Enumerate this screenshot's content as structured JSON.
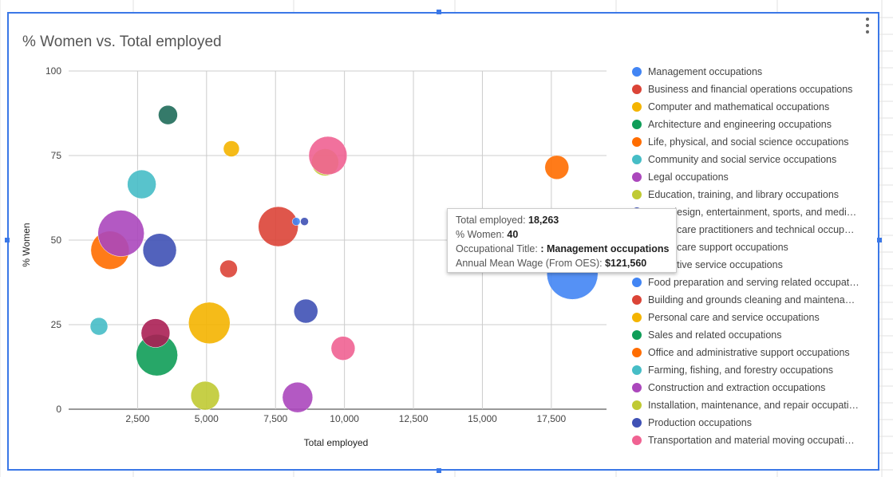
{
  "chart_data": {
    "type": "scatter",
    "title": "% Women vs. Total employed",
    "xlabel": "Total employed",
    "ylabel": "% Women",
    "xlim": [
      0,
      19500
    ],
    "ylim": [
      0,
      100
    ],
    "x_ticks": [
      2500,
      5000,
      7500,
      10000,
      12500,
      15000,
      17500
    ],
    "x_tick_labels": [
      "2,500",
      "5,000",
      "7,500",
      "10,000",
      "12,500",
      "15,000",
      "17,500"
    ],
    "y_ticks": [
      0,
      25,
      50,
      75,
      100
    ],
    "y_tick_labels": [
      "0",
      "25",
      "50",
      "75",
      "100"
    ],
    "grid": true,
    "legend_position": "right",
    "series": [
      {
        "name": "Management occupations",
        "color": "#4285f4",
        "x": 18263,
        "y": 40,
        "size": 32
      },
      {
        "name": "Business and financial operations occupations",
        "color": "#db4437",
        "x": 7600,
        "y": 54,
        "size": 25
      },
      {
        "name": "Computer and mathematical occupations",
        "color": "#f4b400",
        "x": 5900,
        "y": 77,
        "size": 10
      },
      {
        "name": "Architecture and engineering occupations",
        "color": "#0f9d58",
        "x": 3200,
        "y": 16,
        "size": 26
      },
      {
        "name": "Life, physical, and social science occupations",
        "color": "#ff6d00",
        "x": 17700,
        "y": 71.5,
        "size": 15
      },
      {
        "name": "Community and social service occupations",
        "color": "#46bdc6",
        "x": 2650,
        "y": 66.5,
        "size": 18
      },
      {
        "name": "Legal occupations",
        "color": "#ab47bc",
        "x": 8300,
        "y": 3.5,
        "size": 19
      },
      {
        "name": "Education, training, and library occupations",
        "color": "#c0ca33",
        "x": 9300,
        "y": 73,
        "size": 17
      },
      {
        "name": "Arts, design, entertainment, sports, and media…",
        "color": "#3f51b5",
        "x": 8550,
        "y": 55.5,
        "size": 5
      },
      {
        "name": "Healthcare practitioners and technical occupati…",
        "color": "#ab1f54",
        "x": 3150,
        "y": 22.5,
        "size": 18
      },
      {
        "name": "Healthcare support occupations",
        "color": "#1f6b5a",
        "x": 3600,
        "y": 87,
        "size": 12
      },
      {
        "name": "Protective service occupations",
        "color": "#9e9e9e",
        "x": 0,
        "y": 0,
        "size": 0
      },
      {
        "name": "Food preparation and serving related occupatio…",
        "color": "#4285f4",
        "x": 8250,
        "y": 55.5,
        "size": 5
      },
      {
        "name": "Building and grounds cleaning and maintenanc…",
        "color": "#db4437",
        "x": 5800,
        "y": 41.5,
        "size": 11
      },
      {
        "name": "Personal care and service occupations",
        "color": "#f4b400",
        "x": 5100,
        "y": 25.5,
        "size": 26
      },
      {
        "name": "Sales and related occupations",
        "color": "#0f9d58",
        "x": 0,
        "y": 0,
        "size": 0
      },
      {
        "name": "Office and administrative support occupations",
        "color": "#ff6d00",
        "x": 1500,
        "y": 47,
        "size": 24
      },
      {
        "name": "Farming, fishing, and forestry occupations",
        "color": "#46bdc6",
        "x": 1100,
        "y": 24.5,
        "size": 11
      },
      {
        "name": "Construction and extraction occupations",
        "color": "#ab47bc",
        "x": 1900,
        "y": 52,
        "size": 29
      },
      {
        "name": "Installation, maintenance, and repair occupations",
        "color": "#c0ca33",
        "x": 4950,
        "y": 4,
        "size": 18
      },
      {
        "name": "Production occupations",
        "color": "#3f51b5",
        "x": 3300,
        "y": 47,
        "size": 21
      },
      {
        "name": "Transportation and material moving occupations",
        "color": "#f06292",
        "x": 9400,
        "y": 75,
        "size": 24
      }
    ],
    "extra_points": [
      {
        "color": "#3f51b5",
        "x": 8600,
        "y": 29,
        "size": 15
      },
      {
        "color": "#f06292",
        "x": 9950,
        "y": 18,
        "size": 15
      }
    ],
    "tooltip": {
      "line1_label": "Total employed: ",
      "line1_value": "18,263",
      "line2_label": "% Women: ",
      "line2_value": "40",
      "line3_label": "Occupational Title: ",
      "line3_value": ": Management occupations",
      "line4_label": "Annual Mean Wage (From OES): ",
      "line4_value": "$121,560"
    }
  }
}
